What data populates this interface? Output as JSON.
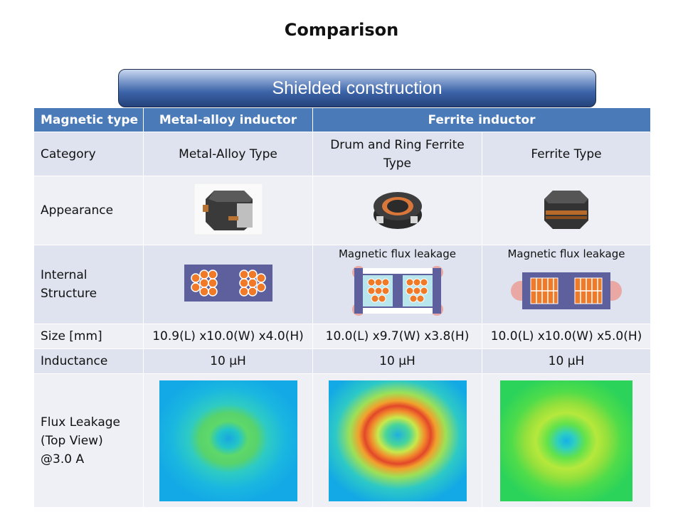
{
  "title": "Comparison",
  "banner": "Shielded construction",
  "header": {
    "col0": "Magnetic type",
    "col1": "Metal-alloy inductor",
    "col2": "Ferrite inductor"
  },
  "rows": {
    "category": {
      "label": "Category",
      "metal": "Metal-Alloy Type",
      "drum": "Drum and Ring Ferrite Type",
      "ferrite": "Ferrite Type"
    },
    "appearance": {
      "label": "Appearance"
    },
    "internal": {
      "label": "Internal Structure",
      "drum_note": "Magnetic flux leakage",
      "ferrite_note": "Magnetic flux leakage"
    },
    "size": {
      "label": "Size [mm]",
      "metal": "10.9(L) x10.0(W) x4.0(H)",
      "drum": "10.0(L) x9.7(W) x3.8(H)",
      "ferrite": "10.0(L) x10.0(W) x5.0(H)"
    },
    "inductance": {
      "label": "Inductance",
      "metal": "10 µH",
      "drum": "10 µH",
      "ferrite": "10 µH"
    },
    "flux": {
      "label_line1": "Flux Leakage",
      "label_line2": "(Top View)",
      "label_line3": "@3.0 A"
    }
  },
  "colors": {
    "header_blue": "#4a7ab8",
    "row_dark": "#dfe3ef",
    "row_light": "#eef0f6",
    "structure_core": "#5e609e",
    "coil_orange": "#f07a28",
    "leak_pink": "#e9a8a4"
  }
}
